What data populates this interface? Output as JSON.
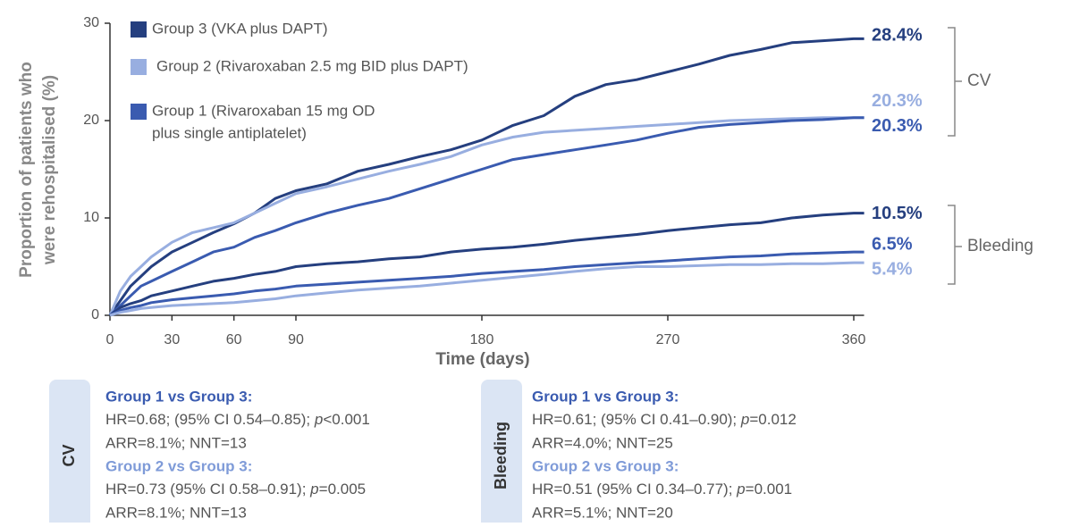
{
  "chart_data": {
    "type": "line",
    "y_label": [
      "Proportion of patients who",
      "were rehospitalised (%)"
    ],
    "x_label": "Time (days)",
    "xlim": [
      0,
      365
    ],
    "xticks": [
      0,
      30,
      60,
      90,
      180,
      270,
      360
    ],
    "ylim": [
      0,
      30
    ],
    "yticks": [
      0,
      10,
      20,
      30
    ],
    "legend": [
      {
        "name": [
          "Group 3 (VKA plus DAPT)"
        ],
        "color": "#253f7f"
      },
      {
        "name": [
          "Group 2 (Rivaroxaban 2.5 mg BID plus DAPT)"
        ],
        "color": "#98aee0"
      },
      {
        "name": [
          "Group 1 (Rivaroxaban 15 mg OD",
          "plus single antiplatelet)"
        ],
        "color": "#3a5bb0"
      }
    ],
    "endpoints": [
      "CV",
      "Bleeding"
    ],
    "x": [
      0,
      5,
      10,
      15,
      20,
      30,
      40,
      50,
      60,
      70,
      80,
      90,
      105,
      120,
      135,
      150,
      165,
      180,
      195,
      210,
      225,
      240,
      255,
      270,
      285,
      300,
      315,
      330,
      345,
      360,
      365
    ],
    "series": [
      {
        "group": 0,
        "endpoint": 0,
        "values": [
          0,
          1.5,
          3,
          4,
          5,
          6.5,
          7.5,
          8.5,
          9.4,
          10.5,
          12,
          12.8,
          13.5,
          14.8,
          15.5,
          16.3,
          17,
          18,
          19.5,
          20.5,
          22.5,
          23.7,
          24.2,
          25,
          25.8,
          26.7,
          27.3,
          28,
          28.2,
          28.4,
          28.4
        ],
        "value_labels": [
          null,
          null,
          null,
          null,
          null,
          null,
          null,
          null,
          null,
          null,
          null,
          null,
          null,
          null,
          null,
          null,
          null,
          null,
          null,
          null,
          null,
          null,
          null,
          null,
          null,
          null,
          null,
          null,
          null,
          null,
          "28.4%"
        ]
      },
      {
        "group": 1,
        "endpoint": 0,
        "values": [
          0,
          2.5,
          4,
          5,
          6,
          7.5,
          8.5,
          9,
          9.5,
          10.5,
          11.5,
          12.5,
          13.2,
          14,
          14.8,
          15.5,
          16.3,
          17.5,
          18.3,
          18.8,
          19,
          19.2,
          19.4,
          19.6,
          19.8,
          20,
          20.1,
          20.2,
          20.3,
          20.3,
          20.3
        ],
        "value_labels": [
          null,
          null,
          null,
          null,
          null,
          null,
          null,
          null,
          null,
          null,
          null,
          null,
          null,
          null,
          null,
          null,
          null,
          null,
          null,
          null,
          null,
          null,
          null,
          null,
          null,
          null,
          null,
          null,
          null,
          null,
          "20.3%"
        ]
      },
      {
        "group": 2,
        "endpoint": 0,
        "values": [
          0,
          1,
          2,
          3,
          3.5,
          4.5,
          5.5,
          6.5,
          7,
          8,
          8.7,
          9.5,
          10.5,
          11.3,
          12,
          13,
          14,
          15,
          16,
          16.5,
          17,
          17.5,
          18,
          18.7,
          19.3,
          19.6,
          19.8,
          20,
          20.1,
          20.3,
          20.3
        ],
        "value_labels": [
          null,
          null,
          null,
          null,
          null,
          null,
          null,
          null,
          null,
          null,
          null,
          null,
          null,
          null,
          null,
          null,
          null,
          null,
          null,
          null,
          null,
          null,
          null,
          null,
          null,
          null,
          null,
          null,
          null,
          null,
          "20.3%"
        ]
      },
      {
        "group": 0,
        "endpoint": 1,
        "values": [
          0,
          0.8,
          1.2,
          1.5,
          2,
          2.5,
          3,
          3.5,
          3.8,
          4.2,
          4.5,
          5,
          5.3,
          5.5,
          5.8,
          6,
          6.5,
          6.8,
          7,
          7.3,
          7.7,
          8,
          8.3,
          8.7,
          9,
          9.3,
          9.5,
          10,
          10.3,
          10.5,
          10.5
        ],
        "value_labels": [
          null,
          null,
          null,
          null,
          null,
          null,
          null,
          null,
          null,
          null,
          null,
          null,
          null,
          null,
          null,
          null,
          null,
          null,
          null,
          null,
          null,
          null,
          null,
          null,
          null,
          null,
          null,
          null,
          null,
          null,
          "10.5%"
        ]
      },
      {
        "group": 2,
        "endpoint": 1,
        "values": [
          0,
          0.5,
          0.8,
          1,
          1.3,
          1.6,
          1.8,
          2,
          2.2,
          2.5,
          2.7,
          3,
          3.2,
          3.4,
          3.6,
          3.8,
          4,
          4.3,
          4.5,
          4.7,
          5,
          5.2,
          5.4,
          5.6,
          5.8,
          6,
          6.1,
          6.3,
          6.4,
          6.5,
          6.5
        ],
        "value_labels": [
          null,
          null,
          null,
          null,
          null,
          null,
          null,
          null,
          null,
          null,
          null,
          null,
          null,
          null,
          null,
          null,
          null,
          null,
          null,
          null,
          null,
          null,
          null,
          null,
          null,
          null,
          null,
          null,
          null,
          null,
          "6.5%"
        ]
      },
      {
        "group": 1,
        "endpoint": 1,
        "values": [
          0,
          0.3,
          0.5,
          0.7,
          0.8,
          1,
          1.1,
          1.2,
          1.3,
          1.5,
          1.7,
          2,
          2.3,
          2.6,
          2.8,
          3,
          3.3,
          3.6,
          3.9,
          4.2,
          4.5,
          4.8,
          5,
          5,
          5.1,
          5.2,
          5.2,
          5.3,
          5.3,
          5.4,
          5.4
        ],
        "value_labels": [
          null,
          null,
          null,
          null,
          null,
          null,
          null,
          null,
          null,
          null,
          null,
          null,
          null,
          null,
          null,
          null,
          null,
          null,
          null,
          null,
          null,
          null,
          null,
          null,
          null,
          null,
          null,
          null,
          null,
          null,
          "5.4%"
        ]
      }
    ]
  },
  "panels": [
    {
      "label": "CV",
      "comparisons": [
        {
          "title": "Group 1 vs Group 3:",
          "hr": {
            "pre": "HR=0.68; (95% CI 0.54–0.85); ",
            "p": "p",
            "post": "<0.001"
          },
          "arr": "ARR=8.1%; NNT=13"
        },
        {
          "title": "Group 2 vs Group 3:",
          "hr": {
            "pre": "HR=0.73 (95% CI 0.58–0.91); ",
            "p": "p",
            "post": "=0.005"
          },
          "arr": "ARR=8.1%; NNT=13"
        }
      ]
    },
    {
      "label": "Bleeding",
      "comparisons": [
        {
          "title": "Group 1 vs Group 3:",
          "hr": {
            "pre": "HR=0.61; (95% CI 0.41–0.90); ",
            "p": "p",
            "post": "=0.012"
          },
          "arr": "ARR=4.0%; NNT=25"
        },
        {
          "title": "Group 2 vs Group 3:",
          "hr": {
            "pre": "HR=0.51 (95% CI 0.34–0.77); ",
            "p": "p",
            "post": "=0.001"
          },
          "arr": "ARR=5.1%; NNT=20"
        }
      ]
    }
  ]
}
